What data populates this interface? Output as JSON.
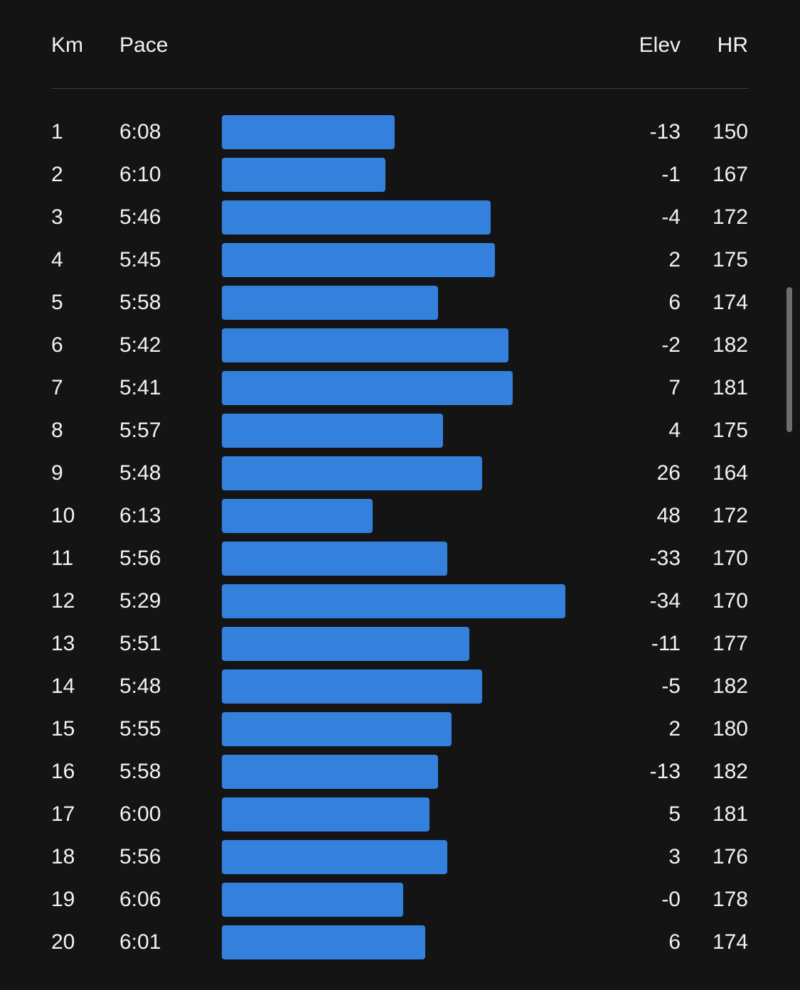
{
  "columns": {
    "km": "Km",
    "pace": "Pace",
    "elev": "Elev",
    "hr": "HR"
  },
  "colors": {
    "background": "#141414",
    "bar": "#3380dd",
    "text": "#f2f2f2",
    "divider": "#3c3c3c"
  },
  "splits": [
    {
      "km": "1",
      "pace": "6:08",
      "elev": "-13",
      "hr": "150"
    },
    {
      "km": "2",
      "pace": "6:10",
      "elev": "-1",
      "hr": "167"
    },
    {
      "km": "3",
      "pace": "5:46",
      "elev": "-4",
      "hr": "172"
    },
    {
      "km": "4",
      "pace": "5:45",
      "elev": "2",
      "hr": "175"
    },
    {
      "km": "5",
      "pace": "5:58",
      "elev": "6",
      "hr": "174"
    },
    {
      "km": "6",
      "pace": "5:42",
      "elev": "-2",
      "hr": "182"
    },
    {
      "km": "7",
      "pace": "5:41",
      "elev": "7",
      "hr": "181"
    },
    {
      "km": "8",
      "pace": "5:57",
      "elev": "4",
      "hr": "175"
    },
    {
      "km": "9",
      "pace": "5:48",
      "elev": "26",
      "hr": "164"
    },
    {
      "km": "10",
      "pace": "6:13",
      "elev": "48",
      "hr": "172"
    },
    {
      "km": "11",
      "pace": "5:56",
      "elev": "-33",
      "hr": "170"
    },
    {
      "km": "12",
      "pace": "5:29",
      "elev": "-34",
      "hr": "170"
    },
    {
      "km": "13",
      "pace": "5:51",
      "elev": "-11",
      "hr": "177"
    },
    {
      "km": "14",
      "pace": "5:48",
      "elev": "-5",
      "hr": "182"
    },
    {
      "km": "15",
      "pace": "5:55",
      "elev": "2",
      "hr": "180"
    },
    {
      "km": "16",
      "pace": "5:58",
      "elev": "-13",
      "hr": "182"
    },
    {
      "km": "17",
      "pace": "6:00",
      "elev": "5",
      "hr": "181"
    },
    {
      "km": "18",
      "pace": "5:56",
      "elev": "3",
      "hr": "176"
    },
    {
      "km": "19",
      "pace": "6:06",
      "elev": "-0",
      "hr": "178"
    },
    {
      "km": "20",
      "pace": "6:01",
      "elev": "6",
      "hr": "174"
    }
  ]
}
